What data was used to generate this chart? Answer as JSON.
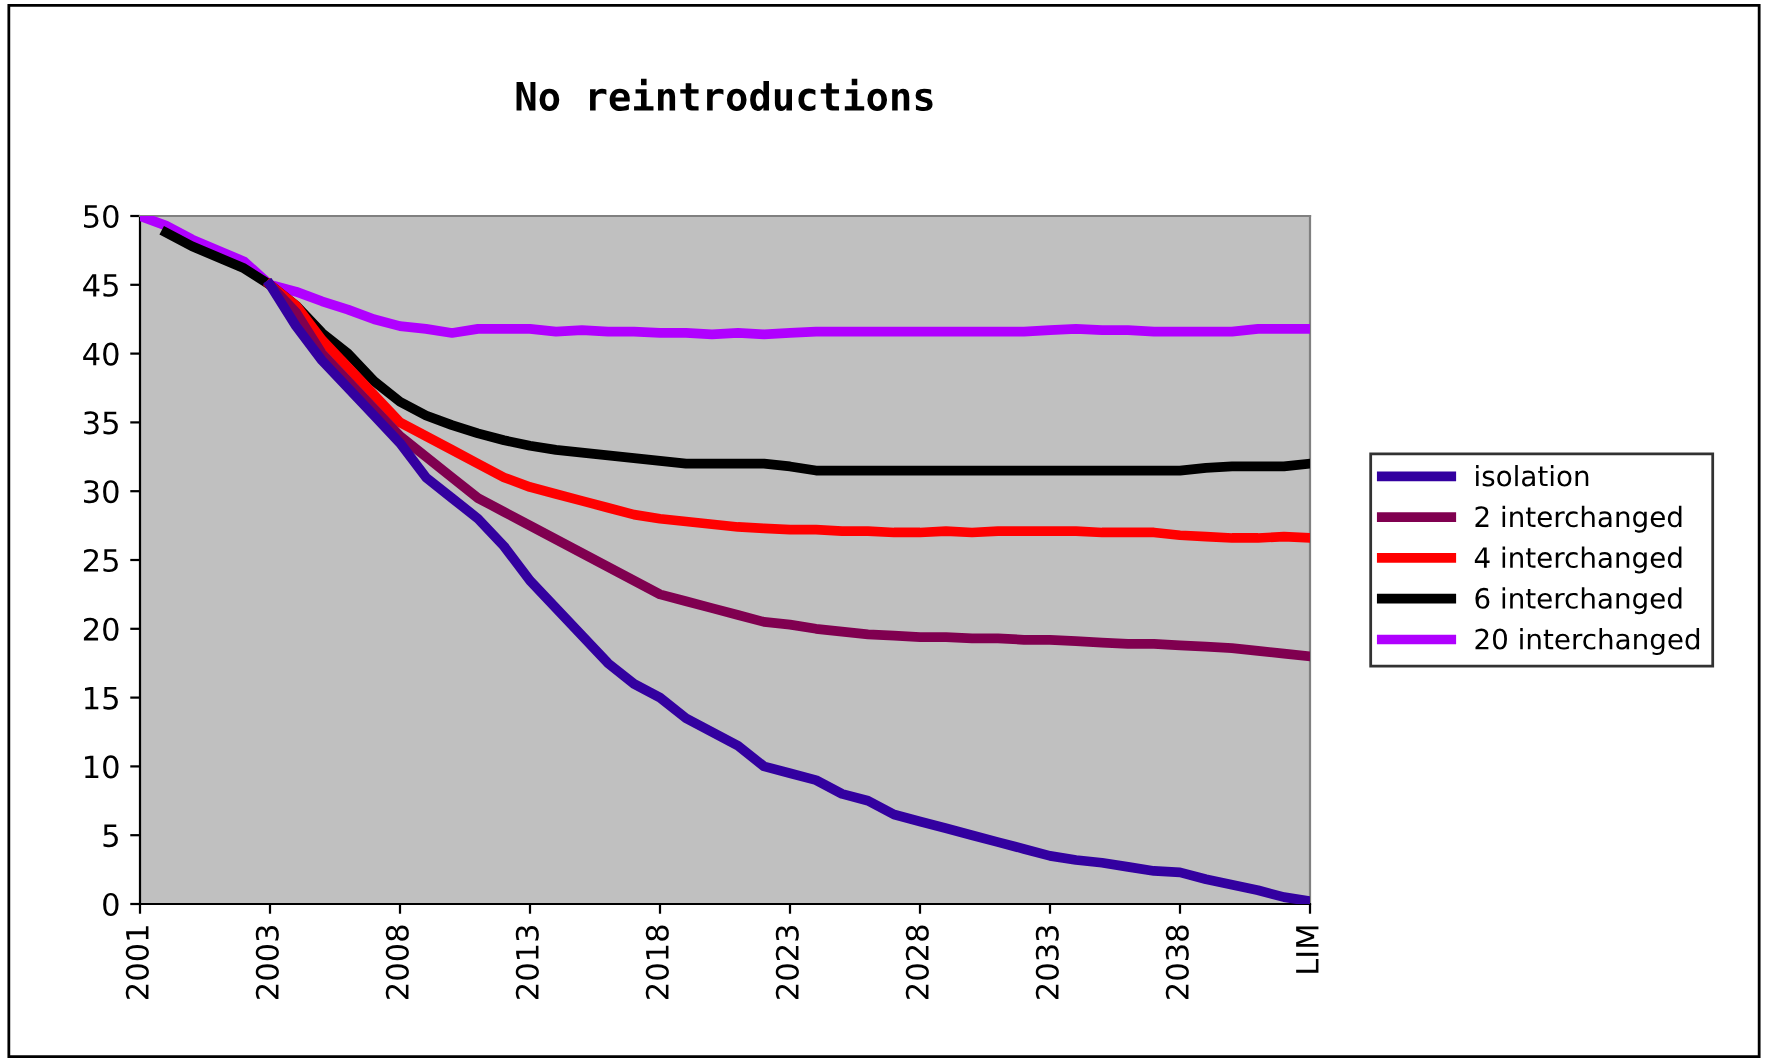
{
  "chart_data": {
    "type": "line",
    "title": "No reintroductions",
    "categories": [
      "2001",
      null,
      null,
      null,
      null,
      "2003",
      null,
      null,
      null,
      null,
      "2008",
      null,
      null,
      null,
      null,
      "2013",
      null,
      null,
      null,
      null,
      "2018",
      null,
      null,
      null,
      null,
      "2023",
      null,
      null,
      null,
      null,
      "2028",
      null,
      null,
      null,
      null,
      "2033",
      null,
      null,
      null,
      null,
      "2038",
      null,
      null,
      null,
      null,
      "LIM"
    ],
    "series": [
      {
        "name": "isolation",
        "color": "#3300a0",
        "values": [
          null,
          null,
          null,
          null,
          null,
          45,
          42,
          39.5,
          37.5,
          35.5,
          33.5,
          31,
          29.5,
          28,
          26,
          23.5,
          21.5,
          19.5,
          17.5,
          16,
          15,
          13.5,
          12.5,
          11.5,
          10,
          9.5,
          9,
          8,
          7.5,
          6.5,
          6,
          5.5,
          5,
          4.5,
          4,
          3.5,
          3.2,
          3,
          2.7,
          2.4,
          2.3,
          1.8,
          1.4,
          1,
          0.5,
          0.2
        ]
      },
      {
        "name": "2 interchanged",
        "color": "#800050",
        "values": [
          null,
          null,
          null,
          null,
          null,
          45,
          43,
          40,
          38,
          36,
          34,
          32.5,
          31,
          29.5,
          28.5,
          27.5,
          26.5,
          25.5,
          24.5,
          23.5,
          22.5,
          22,
          21.5,
          21,
          20.5,
          20.3,
          20,
          19.8,
          19.6,
          19.5,
          19.4,
          19.4,
          19.3,
          19.3,
          19.2,
          19.2,
          19.1,
          19,
          18.9,
          18.9,
          18.8,
          18.7,
          18.6,
          18.4,
          18.2,
          18
        ]
      },
      {
        "name": "4 interchanged",
        "color": "#ff0000",
        "values": [
          null,
          null,
          null,
          null,
          null,
          45,
          43.5,
          41,
          39,
          37,
          35,
          34,
          33,
          32,
          31,
          30.3,
          29.8,
          29.3,
          28.8,
          28.3,
          28,
          27.8,
          27.6,
          27.4,
          27.3,
          27.2,
          27.2,
          27.1,
          27.1,
          27,
          27,
          27.1,
          27,
          27.1,
          27.1,
          27.1,
          27.1,
          27,
          27,
          27,
          26.8,
          26.7,
          26.6,
          26.6,
          26.7,
          26.6
        ]
      },
      {
        "name": "6 interchanged",
        "color": "#000000",
        "values": [
          null,
          48.8,
          47.8,
          47,
          46.2,
          45,
          43.5,
          41.5,
          40,
          38,
          36.5,
          35.5,
          34.8,
          34.2,
          33.7,
          33.3,
          33,
          32.8,
          32.6,
          32.4,
          32.2,
          32,
          32,
          32,
          32,
          31.8,
          31.5,
          31.5,
          31.5,
          31.5,
          31.5,
          31.5,
          31.5,
          31.5,
          31.5,
          31.5,
          31.5,
          31.5,
          31.5,
          31.5,
          31.5,
          31.7,
          31.8,
          31.8,
          31.8,
          32
        ]
      },
      {
        "name": "20 interchanged",
        "color": "#b000ff",
        "values": [
          50,
          49.3,
          48.3,
          47.5,
          46.7,
          45,
          44.5,
          43.8,
          43.2,
          42.5,
          42,
          41.8,
          41.5,
          41.8,
          41.8,
          41.8,
          41.6,
          41.7,
          41.6,
          41.6,
          41.5,
          41.5,
          41.4,
          41.5,
          41.4,
          41.5,
          41.6,
          41.6,
          41.6,
          41.6,
          41.6,
          41.6,
          41.6,
          41.6,
          41.6,
          41.7,
          41.8,
          41.7,
          41.7,
          41.6,
          41.6,
          41.6,
          41.6,
          41.8,
          41.8,
          41.8
        ]
      }
    ],
    "ylim": [
      0,
      50
    ],
    "yticks": [
      0,
      5,
      10,
      15,
      20,
      25,
      30,
      35,
      40,
      45,
      50
    ],
    "grid": false,
    "legend": "right",
    "marker": "none",
    "line_style": "solid"
  }
}
